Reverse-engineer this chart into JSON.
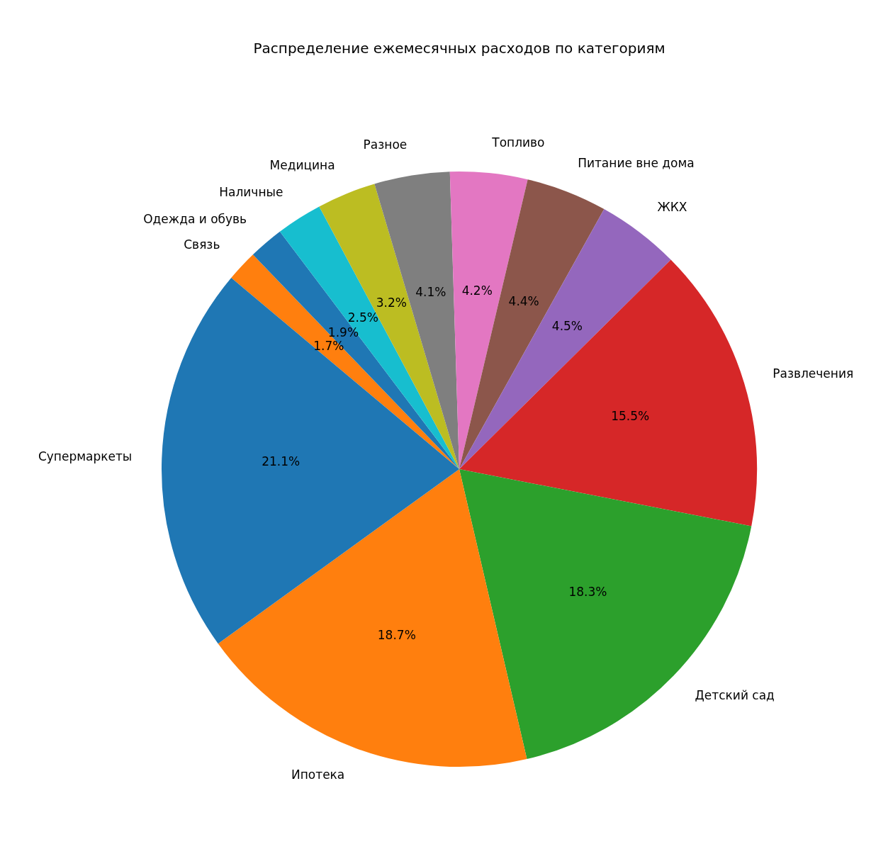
{
  "chart_data": {
    "type": "pie",
    "title": "Распределение ежемесячных расходов по категориям",
    "categories": [
      "Супермаркеты",
      "Ипотека",
      "Детский сад",
      "Развлечения",
      "ЖКХ",
      "Питание вне дома",
      "Топливо",
      "Разное",
      "Медицина",
      "Наличные",
      "Одежда и обувь",
      "Связь"
    ],
    "values": [
      21.1,
      18.7,
      18.3,
      15.5,
      4.5,
      4.4,
      4.2,
      4.1,
      3.2,
      2.5,
      1.9,
      1.7
    ],
    "value_labels": [
      "21.1%",
      "18.7%",
      "18.3%",
      "15.5%",
      "4.5%",
      "4.4%",
      "4.2%",
      "4.1%",
      "3.2%",
      "2.5%",
      "1.9%",
      "1.7%"
    ],
    "colors": [
      "#1f77b4",
      "#ff7f0e",
      "#2ca02c",
      "#d62728",
      "#9467bd",
      "#8c564b",
      "#e377c2",
      "#7f7f7f",
      "#bcbd22",
      "#17becf",
      "#1f77b4",
      "#ff7f0e"
    ]
  }
}
